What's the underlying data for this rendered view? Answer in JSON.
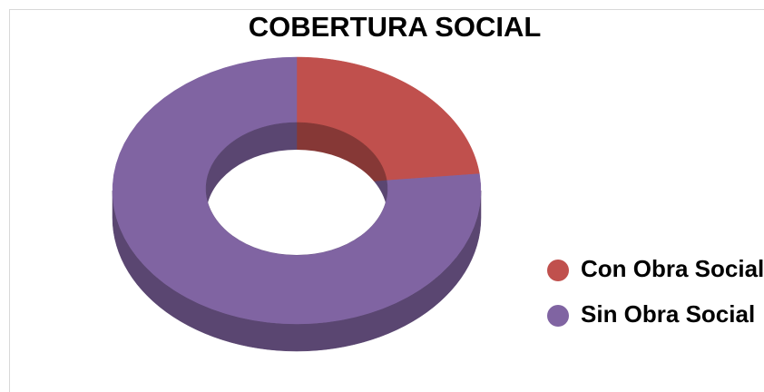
{
  "chart_data": {
    "type": "pie",
    "donut": true,
    "title": "COBERTURA SOCIAL",
    "categories": [
      "Con Obra Social",
      "Sin Obra Social"
    ],
    "values": [
      23,
      77
    ],
    "colors": [
      "#c0504d",
      "#8064a2"
    ],
    "legend": "right"
  }
}
